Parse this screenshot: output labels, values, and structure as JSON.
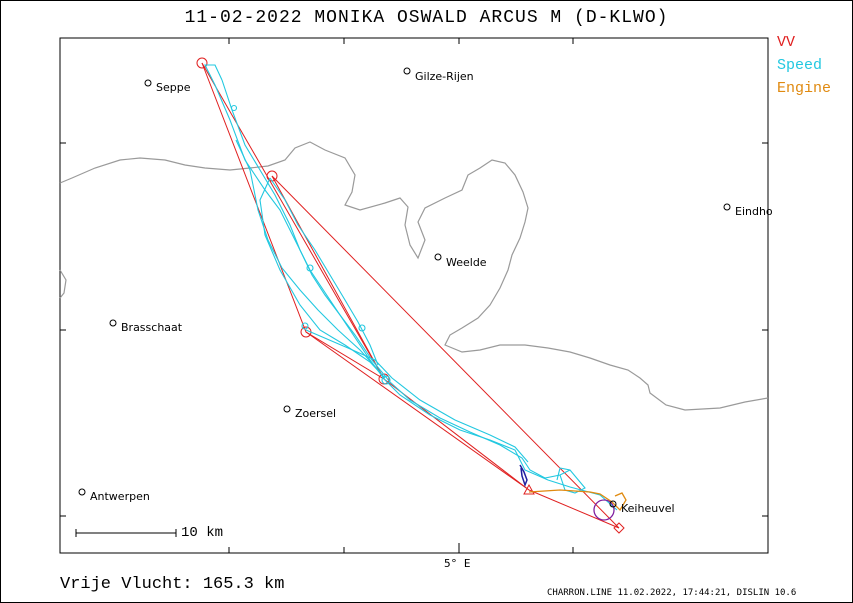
{
  "title": "11-02-2022   MONIKA OSWALD   ARCUS M (D-KLWO)",
  "legend": [
    {
      "label": "VV",
      "color": "#e02020"
    },
    {
      "label": "Speed",
      "color": "#22c8e0"
    },
    {
      "label": "Engine",
      "color": "#e08a10"
    }
  ],
  "places": {
    "seppe": "Seppe",
    "gilze": "Gilze-Rijen",
    "eindhoven": "Eindho",
    "weelde": "Weelde",
    "brasschaat": "Brasschaat",
    "zoersel": "Zoersel",
    "antwerpen": "Antwerpen",
    "keiheuvel": "Keiheuvel"
  },
  "axis": {
    "longitude_label": "5° E"
  },
  "scale": {
    "label": "10 km"
  },
  "footer": {
    "distance": "Vrije Vlucht:  165.3 km",
    "credits": "CHARRON.LINE 11.02.2022, 17:44:21, DISLIN 10.6"
  },
  "colors": {
    "task": "#e02020",
    "track": "#22c8e0",
    "engine": "#e08a10",
    "border": "#9a9a9a",
    "climb": "#2020a0",
    "circle": "#8020a0"
  }
}
